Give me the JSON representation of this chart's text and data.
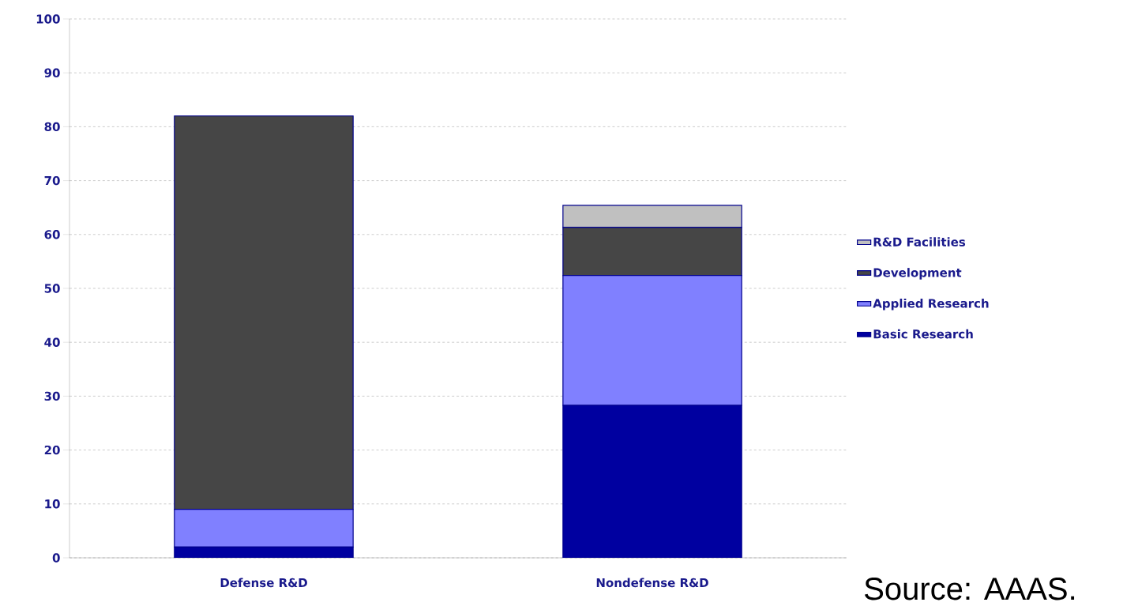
{
  "chart_data": {
    "type": "bar",
    "stacked": true,
    "categories": [
      "Defense R&D",
      "Nondefense R&D"
    ],
    "series": [
      {
        "name": "Basic Research",
        "color": "#0000a0",
        "values": [
          2,
          28.3
        ]
      },
      {
        "name": "Applied Research",
        "color": "#8080ff",
        "values": [
          7,
          24.1
        ]
      },
      {
        "name": "Development",
        "color": "#464646",
        "values": [
          73,
          8.9
        ]
      },
      {
        "name": "R&D Facilities",
        "color": "#c0c0c0",
        "values": [
          0,
          4.1
        ]
      }
    ],
    "ylim": [
      0,
      100
    ],
    "yticks": [
      0,
      10,
      20,
      30,
      40,
      50,
      60,
      70,
      80,
      90,
      100
    ],
    "grid": "y",
    "legend": "right",
    "annotations": [
      "Source: AAAS."
    ]
  }
}
